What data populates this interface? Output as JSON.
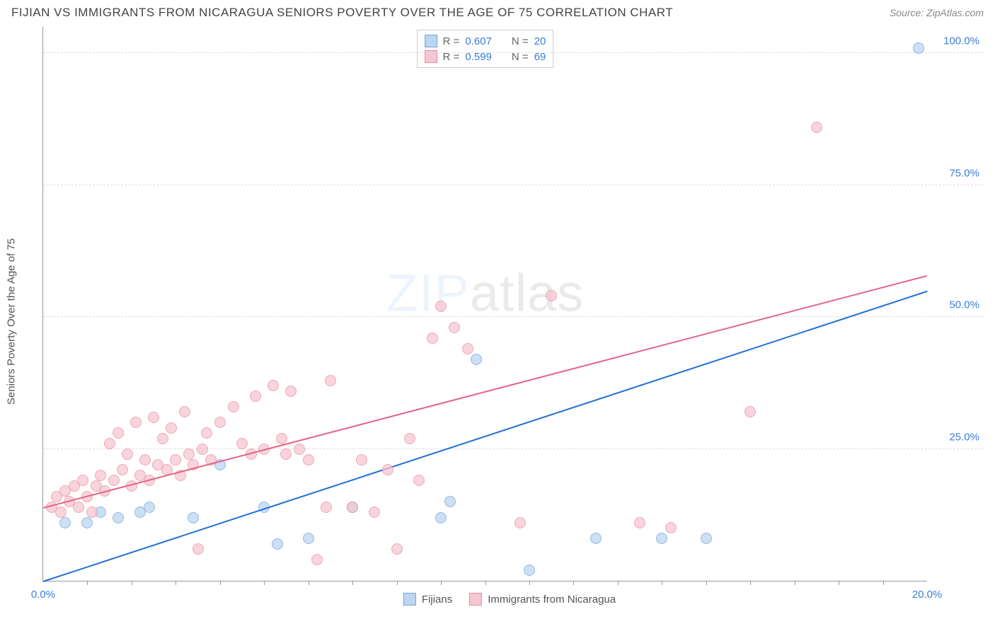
{
  "title": "FIJIAN VS IMMIGRANTS FROM NICARAGUA SENIORS POVERTY OVER THE AGE OF 75 CORRELATION CHART",
  "source_label": "Source: ZipAtlas.com",
  "y_axis_label": "Seniors Poverty Over the Age of 75",
  "watermark_a": "ZIP",
  "watermark_b": "atlas",
  "chart": {
    "type": "scatter",
    "xlim": [
      0,
      20
    ],
    "ylim": [
      0,
      105
    ],
    "x_ticks_minor_step": 1,
    "x_tick_labels": [
      {
        "v": 0,
        "label": "0.0%"
      },
      {
        "v": 20,
        "label": "20.0%"
      }
    ],
    "y_ticks": [
      {
        "v": 25,
        "label": "25.0%"
      },
      {
        "v": 50,
        "label": "50.0%"
      },
      {
        "v": 75,
        "label": "75.0%"
      },
      {
        "v": 100,
        "label": "100.0%"
      }
    ],
    "axis_label_color": "#3b7dd8",
    "grid_color": "#dddddd",
    "series": [
      {
        "name": "Fijians",
        "fill": "#bcd5f0",
        "stroke": "#6ea4de",
        "line_color": "#1f6fd4",
        "r": 0.607,
        "n": 20,
        "trend": {
          "x1": 0,
          "y1": 0,
          "x2": 20,
          "y2": 55
        },
        "points": [
          [
            0.5,
            11
          ],
          [
            1.0,
            11
          ],
          [
            1.3,
            13
          ],
          [
            1.7,
            12
          ],
          [
            2.2,
            13
          ],
          [
            2.4,
            14
          ],
          [
            3.4,
            12
          ],
          [
            4.0,
            22
          ],
          [
            5.0,
            14
          ],
          [
            5.3,
            7
          ],
          [
            6.0,
            8
          ],
          [
            7.0,
            14
          ],
          [
            9.0,
            12
          ],
          [
            9.2,
            15
          ],
          [
            9.8,
            42
          ],
          [
            11.0,
            2
          ],
          [
            12.5,
            8
          ],
          [
            14.0,
            8
          ],
          [
            15.0,
            8
          ],
          [
            19.8,
            101
          ]
        ]
      },
      {
        "name": "Immigrants from Nicaragua",
        "fill": "#f6c6d2",
        "stroke": "#e98ba3",
        "line_color": "#e36488",
        "r": 0.599,
        "n": 69,
        "trend": {
          "x1": 0,
          "y1": 14,
          "x2": 20,
          "y2": 58
        },
        "points": [
          [
            0.2,
            14
          ],
          [
            0.3,
            16
          ],
          [
            0.4,
            13
          ],
          [
            0.5,
            17
          ],
          [
            0.6,
            15
          ],
          [
            0.7,
            18
          ],
          [
            0.8,
            14
          ],
          [
            0.9,
            19
          ],
          [
            1.0,
            16
          ],
          [
            1.1,
            13
          ],
          [
            1.2,
            18
          ],
          [
            1.3,
            20
          ],
          [
            1.4,
            17
          ],
          [
            1.5,
            26
          ],
          [
            1.6,
            19
          ],
          [
            1.7,
            28
          ],
          [
            1.8,
            21
          ],
          [
            1.9,
            24
          ],
          [
            2.0,
            18
          ],
          [
            2.1,
            30
          ],
          [
            2.2,
            20
          ],
          [
            2.3,
            23
          ],
          [
            2.4,
            19
          ],
          [
            2.5,
            31
          ],
          [
            2.6,
            22
          ],
          [
            2.7,
            27
          ],
          [
            2.8,
            21
          ],
          [
            2.9,
            29
          ],
          [
            3.0,
            23
          ],
          [
            3.1,
            20
          ],
          [
            3.2,
            32
          ],
          [
            3.3,
            24
          ],
          [
            3.4,
            22
          ],
          [
            3.5,
            6
          ],
          [
            3.6,
            25
          ],
          [
            3.7,
            28
          ],
          [
            3.8,
            23
          ],
          [
            4.0,
            30
          ],
          [
            4.3,
            33
          ],
          [
            4.5,
            26
          ],
          [
            4.7,
            24
          ],
          [
            4.8,
            35
          ],
          [
            5.0,
            25
          ],
          [
            5.2,
            37
          ],
          [
            5.4,
            27
          ],
          [
            5.5,
            24
          ],
          [
            5.6,
            36
          ],
          [
            5.8,
            25
          ],
          [
            6.0,
            23
          ],
          [
            6.2,
            4
          ],
          [
            6.4,
            14
          ],
          [
            6.5,
            38
          ],
          [
            7.0,
            14
          ],
          [
            7.2,
            23
          ],
          [
            7.5,
            13
          ],
          [
            7.8,
            21
          ],
          [
            8.0,
            6
          ],
          [
            8.3,
            27
          ],
          [
            8.5,
            19
          ],
          [
            8.8,
            46
          ],
          [
            9.0,
            52
          ],
          [
            9.3,
            48
          ],
          [
            9.6,
            44
          ],
          [
            10.8,
            11
          ],
          [
            11.5,
            54
          ],
          [
            13.5,
            11
          ],
          [
            16.0,
            32
          ],
          [
            17.5,
            86
          ],
          [
            14.2,
            10
          ]
        ]
      }
    ]
  },
  "stat_legend_label_r": "R =",
  "stat_legend_label_n": "N ="
}
